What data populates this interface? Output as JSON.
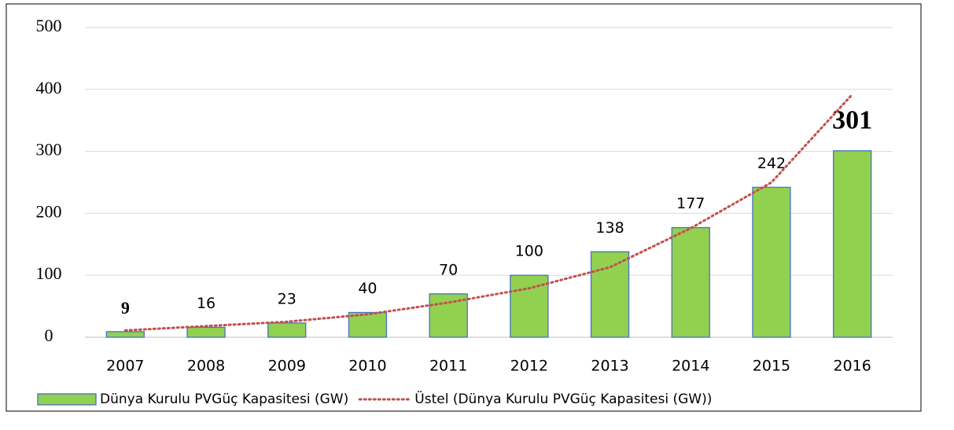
{
  "chart_data": {
    "type": "bar",
    "categories": [
      "2007",
      "2008",
      "2009",
      "2010",
      "2011",
      "2012",
      "2013",
      "2014",
      "2015",
      "2016"
    ],
    "series": [
      {
        "name": "Dünya Kurulu PVGüç Kapasitesi (GW)",
        "color": "#92d050",
        "values": [
          9,
          16,
          23,
          40,
          70,
          100,
          138,
          177,
          242,
          301
        ]
      },
      {
        "name": "Üstel (Dünya Kurulu PVGüç Kapasitesi (GW))",
        "color": "#c0504d",
        "type": "line",
        "values": [
          11,
          18,
          25,
          37,
          56,
          79,
          113,
          176,
          250,
          392
        ]
      }
    ],
    "ylim": [
      0,
      500
    ],
    "yticks": [
      0,
      100,
      200,
      300,
      400,
      500
    ],
    "grid": true,
    "legend": "bottom"
  }
}
